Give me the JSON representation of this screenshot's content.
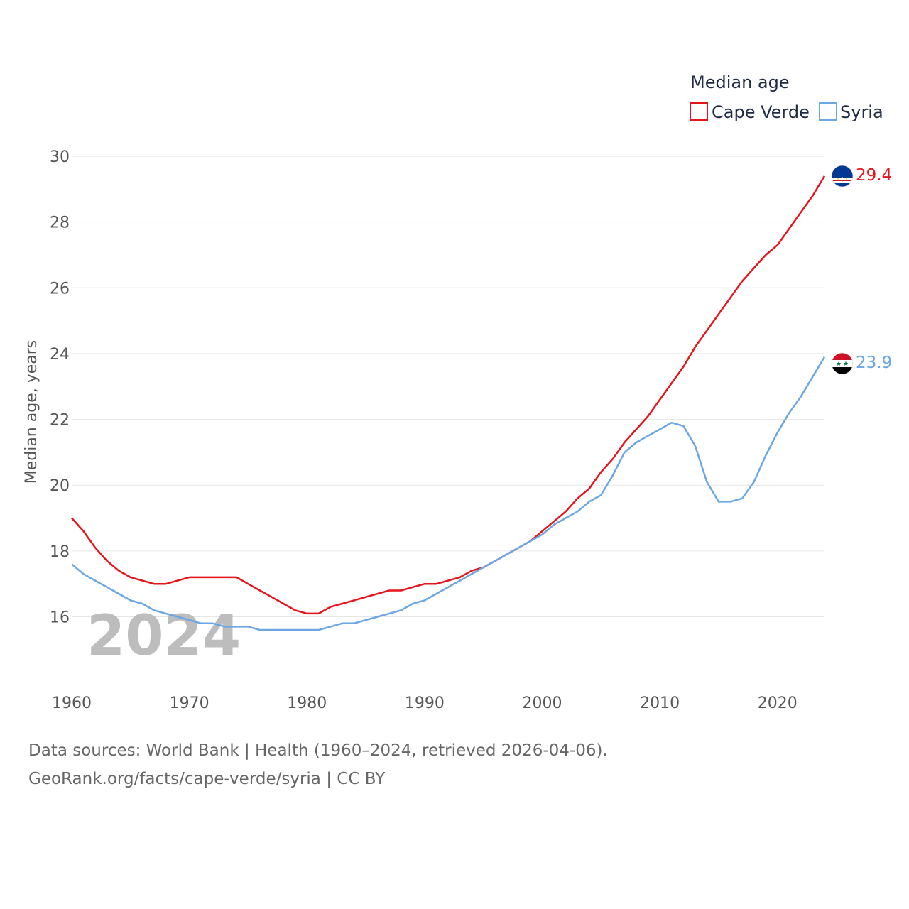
{
  "chart_data": {
    "type": "line",
    "title": "",
    "ylabel": "Median age, years",
    "xlabel": "",
    "xlim": [
      1960,
      2024
    ],
    "ylim": [
      14.5,
      30
    ],
    "xticks": [
      1960,
      1970,
      1980,
      1990,
      2000,
      2010,
      2020
    ],
    "yticks": [
      16,
      18,
      20,
      22,
      24,
      26,
      28,
      30
    ],
    "grid": true,
    "legend": {
      "title": "Median age",
      "placement": "top-right",
      "entries": [
        "Cape Verde",
        "Syria"
      ]
    },
    "highlight_year": "2024",
    "x": [
      1960,
      1961,
      1962,
      1963,
      1964,
      1965,
      1966,
      1967,
      1968,
      1969,
      1970,
      1971,
      1972,
      1973,
      1974,
      1975,
      1976,
      1977,
      1978,
      1979,
      1980,
      1981,
      1982,
      1983,
      1984,
      1985,
      1986,
      1987,
      1988,
      1989,
      1990,
      1991,
      1992,
      1993,
      1994,
      1995,
      1996,
      1997,
      1998,
      1999,
      2000,
      2001,
      2002,
      2003,
      2004,
      2005,
      2006,
      2007,
      2008,
      2009,
      2010,
      2011,
      2012,
      2013,
      2014,
      2015,
      2016,
      2017,
      2018,
      2019,
      2020,
      2021,
      2022,
      2023,
      2024
    ],
    "series": [
      {
        "name": "Cape Verde",
        "color": "#e8141c",
        "end_label": "29.4",
        "values": [
          19.0,
          18.6,
          18.1,
          17.7,
          17.4,
          17.2,
          17.1,
          17.0,
          17.0,
          17.1,
          17.2,
          17.2,
          17.2,
          17.2,
          17.2,
          17.0,
          16.8,
          16.6,
          16.4,
          16.2,
          16.1,
          16.1,
          16.3,
          16.4,
          16.5,
          16.6,
          16.7,
          16.8,
          16.8,
          16.9,
          17.0,
          17.0,
          17.1,
          17.2,
          17.4,
          17.5,
          17.7,
          17.9,
          18.1,
          18.3,
          18.6,
          18.9,
          19.2,
          19.6,
          19.9,
          20.4,
          20.8,
          21.3,
          21.7,
          22.1,
          22.6,
          23.1,
          23.6,
          24.2,
          24.7,
          25.2,
          25.7,
          26.2,
          26.6,
          27.0,
          27.3,
          27.8,
          28.3,
          28.8,
          29.4
        ]
      },
      {
        "name": "Syria",
        "color": "#6aa7e3",
        "end_label": "23.9",
        "values": [
          17.6,
          17.3,
          17.1,
          16.9,
          16.7,
          16.5,
          16.4,
          16.2,
          16.1,
          16.0,
          15.9,
          15.8,
          15.8,
          15.7,
          15.7,
          15.7,
          15.6,
          15.6,
          15.6,
          15.6,
          15.6,
          15.6,
          15.7,
          15.8,
          15.8,
          15.9,
          16.0,
          16.1,
          16.2,
          16.4,
          16.5,
          16.7,
          16.9,
          17.1,
          17.3,
          17.5,
          17.7,
          17.9,
          18.1,
          18.3,
          18.5,
          18.8,
          19.0,
          19.2,
          19.5,
          19.7,
          20.3,
          21.0,
          21.3,
          21.5,
          21.7,
          21.9,
          21.8,
          21.2,
          20.1,
          19.5,
          19.5,
          19.6,
          20.1,
          20.9,
          21.6,
          22.2,
          22.7,
          23.3,
          23.9
        ]
      }
    ]
  },
  "footer": {
    "line1": "Data sources: World Bank | Health (1960–2024, retrieved 2026-04-06).",
    "line2": "GeoRank.org/facts/cape-verde/syria | CC BY"
  },
  "icons": {
    "cape_verde_flag": "cape-verde-flag-icon",
    "syria_flag": "syria-flag-icon"
  },
  "flag_colors": {
    "cape_verde": {
      "blue": "#003893",
      "white": "#ffffff",
      "red": "#cf2027",
      "star": "#f7d116"
    },
    "syria": {
      "red": "#ce1126",
      "white": "#ffffff",
      "black": "#000000",
      "star": "#007a3d"
    }
  }
}
